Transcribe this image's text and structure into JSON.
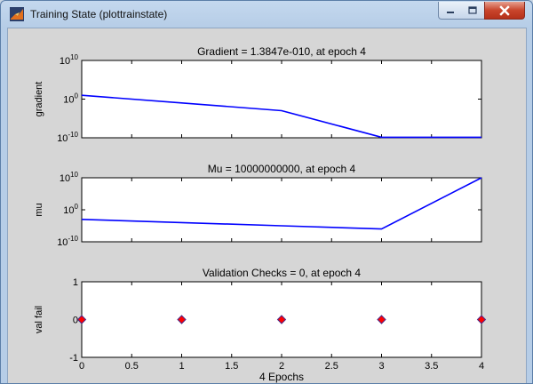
{
  "window": {
    "title": "Training State (plottrainstate)"
  },
  "colors": {
    "line": "#0000ff",
    "marker_fill": "#ff0000",
    "marker_edge": "#4a2a8a"
  },
  "chart_data": [
    {
      "type": "line",
      "title": "Gradient = 1.3847e-010, at epoch 4",
      "xlabel": "",
      "ylabel": "gradient",
      "yscale": "log",
      "ylim": [
        1e-10,
        10000000000.0
      ],
      "xlim": [
        0,
        4
      ],
      "yticks": [
        "10^10",
        "10^0",
        "10^-10"
      ],
      "x": [
        0,
        1,
        2,
        3,
        4
      ],
      "values": [
        10,
        0.1,
        0.001,
        1.3847e-10,
        1.3847e-10
      ]
    },
    {
      "type": "line",
      "title": "Mu = 10000000000, at epoch 4",
      "xlabel": "",
      "ylabel": "mu",
      "yscale": "log",
      "ylim": [
        1e-10,
        10000000000.0
      ],
      "xlim": [
        0,
        4
      ],
      "yticks": [
        "10^10",
        "10^0",
        "10^-10"
      ],
      "x": [
        0,
        1,
        2,
        3,
        4
      ],
      "values": [
        0.001,
        0.0001,
        1e-05,
        1e-06,
        10000000000
      ]
    },
    {
      "type": "scatter",
      "title": "Validation Checks = 0, at epoch 4",
      "xlabel": "4 Epochs",
      "ylabel": "val fail",
      "ylim": [
        -1,
        1
      ],
      "xlim": [
        0,
        4
      ],
      "yticks": [
        "1",
        "0",
        "-1"
      ],
      "xticks": [
        "0",
        "0.5",
        "1",
        "1.5",
        "2",
        "2.5",
        "3",
        "3.5",
        "4"
      ],
      "x": [
        0,
        1,
        2,
        3,
        4
      ],
      "values": [
        0,
        0,
        0,
        0,
        0
      ]
    }
  ]
}
